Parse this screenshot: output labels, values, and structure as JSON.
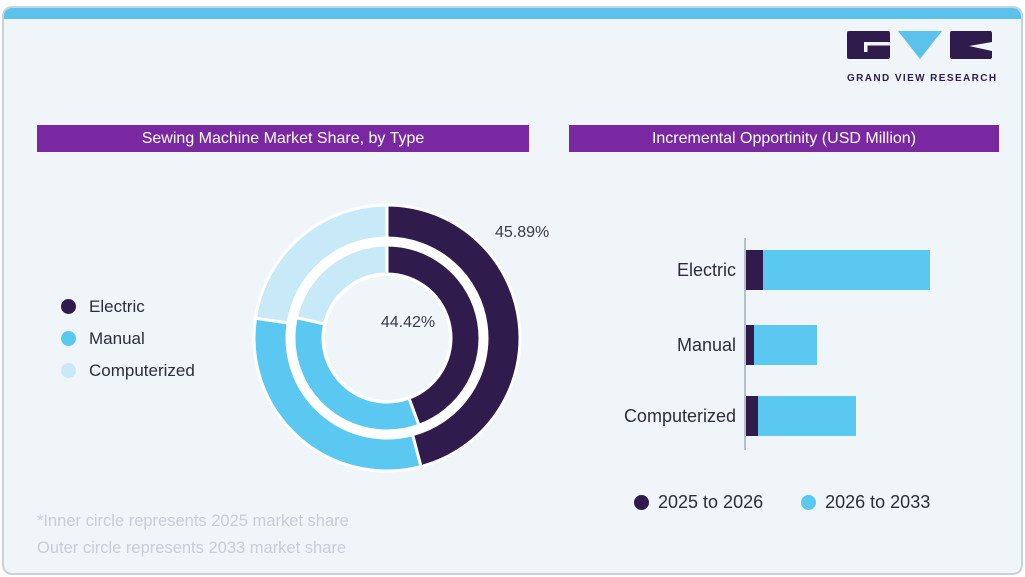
{
  "page": {
    "background": "#ffffff"
  },
  "card": {
    "background": "#f0f5f9",
    "border_color": "#c9d2dc",
    "top_strip_color": "#5bc3eb"
  },
  "logo": {
    "wordmark": "GRAND VIEW RESEARCH",
    "dark_color": "#2f1b4c",
    "accent_color": "#5bc3eb"
  },
  "panels": {
    "left": {
      "title": "Sewing Machine Market Share, by Type",
      "title_bg": "#7a28a2",
      "title_color": "#ffffff"
    },
    "right": {
      "title": "Incremental Opportinity (USD Million)",
      "title_bg": "#7a28a2",
      "title_color": "#ffffff"
    }
  },
  "footnote": {
    "line1": "*Inner circle represents 2025 market share",
    "line2": "Outer circle represents 2033 market share",
    "color": "#c8cdd7"
  },
  "chart_data": [
    {
      "type": "pie",
      "variant": "double_ring_donut",
      "title": "Sewing Machine Market Share, by Type",
      "categories": [
        "Electric",
        "Manual",
        "Computerized"
      ],
      "colors": [
        "#2f1b4c",
        "#5bc8f2",
        "#c8e9f8"
      ],
      "series": [
        {
          "name": "2025 market share (inner circle)",
          "values": [
            44.42,
            34.1,
            21.48
          ]
        },
        {
          "name": "2033 market share (outer circle)",
          "values": [
            45.89,
            31.5,
            22.61
          ]
        }
      ],
      "callouts": {
        "outer_electric": "45.89%",
        "inner_electric": "44.42%"
      },
      "legend_position": "left",
      "note": "Only the Electric slices are labeled in the image; Manual and Computerized values are estimated from arc angles."
    },
    {
      "type": "bar",
      "orientation": "horizontal",
      "stacked": true,
      "title": "Incremental Opportinity (USD Million)",
      "categories": [
        "Electric",
        "Manual",
        "Computerized"
      ],
      "series": [
        {
          "name": "2025 to 2026",
          "color": "#2f1b4c",
          "values": [
            17,
            8,
            12
          ]
        },
        {
          "name": "2026 to 2033",
          "color": "#5bc8f2",
          "values": [
            167,
            63,
            98
          ]
        }
      ],
      "axis": {
        "value_labels_shown": false,
        "baseline_color": "#b6bec8"
      },
      "legend_position": "bottom",
      "note": "No numeric scale is shown in the image; values are relative bar lengths (pixels)."
    }
  ]
}
